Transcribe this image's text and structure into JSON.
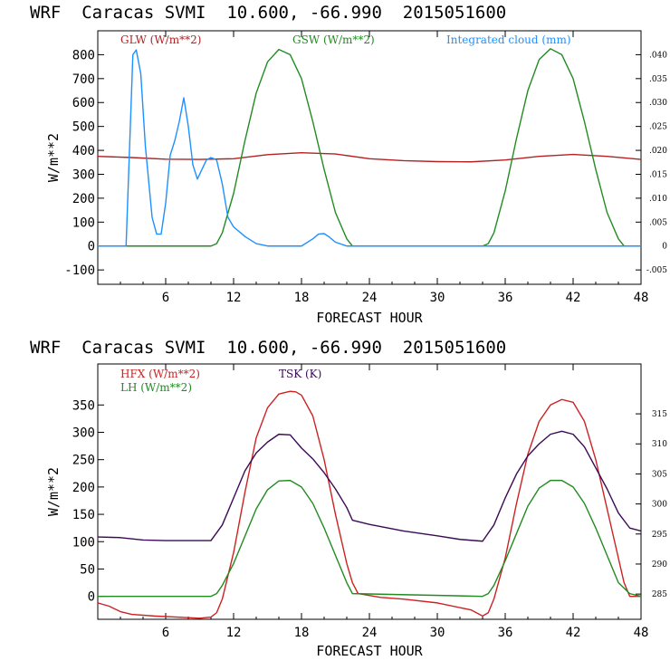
{
  "chart_data": [
    {
      "type": "line",
      "title": "WRF  Caracas SVMI  10.600, -66.990  2015051600",
      "xlabel": "FORECAST HOUR",
      "ylabel": "W/m**2",
      "xlim": [
        0,
        48
      ],
      "ylim": [
        -160,
        900
      ],
      "y2lim": [
        -0.008,
        0.045
      ],
      "x_ticks": [
        6,
        12,
        18,
        24,
        30,
        36,
        42,
        48
      ],
      "x_tick_labels": [
        "6",
        "12",
        "18",
        "24",
        "30",
        "36",
        "42",
        "48"
      ],
      "y_ticks": [
        -100,
        0,
        100,
        200,
        300,
        400,
        500,
        600,
        700,
        800
      ],
      "y_tick_labels": [
        "-100",
        "0",
        "100",
        "200",
        "300",
        "400",
        "500",
        "600",
        "700",
        "800"
      ],
      "y2_ticks": [
        -0.005,
        0,
        0.005,
        0.01,
        0.015,
        0.02,
        0.025,
        0.03,
        0.035,
        0.04
      ],
      "y2_tick_labels": [
        "-.005",
        "0",
        ".005",
        ".010",
        ".015",
        ".020",
        ".025",
        ".030",
        ".035",
        ".040"
      ],
      "grid": false,
      "legend": "top",
      "series": [
        {
          "name": "GLW (W/m**2)",
          "color": "#b22222",
          "axis": "left",
          "x": [
            0,
            3,
            6,
            9,
            12,
            15,
            18,
            21,
            24,
            27,
            30,
            33,
            36,
            39,
            42,
            45,
            48
          ],
          "values": [
            375,
            370,
            363,
            362,
            365,
            382,
            390,
            385,
            365,
            357,
            353,
            352,
            360,
            375,
            383,
            375,
            362
          ]
        },
        {
          "name": "GSW (W/m**2)",
          "color": "#228b22",
          "axis": "left",
          "x": [
            0,
            10,
            10.5,
            11,
            12,
            13,
            14,
            15,
            16,
            17,
            18,
            19,
            20,
            21,
            22,
            22.5,
            34,
            34.5,
            35,
            36,
            37,
            38,
            39,
            40,
            41,
            42,
            43,
            44,
            45,
            46,
            46.5,
            48
          ],
          "values": [
            0,
            0,
            10,
            55,
            220,
            440,
            640,
            770,
            822,
            800,
            700,
            520,
            320,
            140,
            30,
            0,
            0,
            10,
            55,
            230,
            450,
            650,
            780,
            825,
            800,
            700,
            520,
            320,
            140,
            30,
            0,
            0
          ]
        },
        {
          "name": "Integrated cloud (mm)",
          "color": "#1e90ff",
          "axis": "right",
          "x": [
            0,
            2.5,
            2.8,
            3.1,
            3.4,
            3.8,
            4.2,
            4.8,
            5.2,
            5.6,
            6,
            6.4,
            6.8,
            7.2,
            7.6,
            8,
            8.4,
            8.8,
            9.2,
            9.6,
            10,
            10.5,
            11,
            11.5,
            12,
            13,
            14,
            15,
            18,
            19,
            19.5,
            20,
            20.5,
            21,
            22,
            24,
            30,
            36,
            42,
            46,
            48
          ],
          "values": [
            0,
            0,
            0.02,
            0.04,
            0.041,
            0.036,
            0.021,
            0.006,
            0.0025,
            0.0025,
            0.009,
            0.019,
            0.022,
            0.026,
            0.031,
            0.025,
            0.017,
            0.014,
            0.016,
            0.018,
            0.0185,
            0.018,
            0.013,
            0.006,
            0.004,
            0.002,
            0.0005,
            0,
            0,
            0.0015,
            0.0025,
            0.0026,
            0.0018,
            0.0008,
            0,
            0,
            0,
            0,
            0,
            0,
            0
          ]
        }
      ]
    },
    {
      "type": "line",
      "title": "WRF  Caracas SVMI  10.600, -66.990  2015051600",
      "xlabel": "FORECAST HOUR",
      "ylabel": "W/m**2",
      "xlim": [
        0,
        48
      ],
      "ylim": [
        -42,
        425
      ],
      "y2lim": [
        280.8,
        323.3
      ],
      "x_ticks": [
        6,
        12,
        18,
        24,
        30,
        36,
        42,
        48
      ],
      "x_tick_labels": [
        "6",
        "12",
        "18",
        "24",
        "30",
        "36",
        "42",
        "48"
      ],
      "y_ticks": [
        0,
        50,
        100,
        150,
        200,
        250,
        300,
        350
      ],
      "y_tick_labels": [
        "0",
        "50",
        "100",
        "150",
        "200",
        "250",
        "300",
        "350"
      ],
      "y2_ticks": [
        285,
        290,
        295,
        300,
        305,
        310,
        315
      ],
      "y2_tick_labels": [
        "285",
        "290",
        "295",
        "300",
        "305",
        "310",
        "315"
      ],
      "grid": false,
      "legend": "top-left",
      "series": [
        {
          "name": "HFX (W/m**2)",
          "color": "#cc2222",
          "axis": "left",
          "x": [
            0,
            1,
            2,
            3,
            5,
            7,
            9,
            10,
            10.5,
            11,
            12,
            13,
            14,
            15,
            16,
            17,
            17.5,
            18,
            19,
            20,
            21,
            22,
            22.5,
            23,
            25,
            27,
            30,
            33,
            34,
            34.5,
            35,
            36,
            37,
            38,
            39,
            40,
            41,
            42,
            43,
            44,
            45,
            46,
            46.5,
            47,
            48
          ],
          "values": [
            -12,
            -18,
            -28,
            -33,
            -36,
            -38,
            -40,
            -38,
            -30,
            -5,
            80,
            190,
            290,
            345,
            370,
            375,
            374,
            368,
            330,
            250,
            150,
            60,
            25,
            5,
            -2,
            -5,
            -12,
            -25,
            -36,
            -30,
            -5,
            70,
            170,
            260,
            320,
            350,
            360,
            355,
            320,
            250,
            160,
            70,
            25,
            0,
            0
          ]
        },
        {
          "name": "LH (W/m**2)",
          "color": "#228b22",
          "axis": "left",
          "x": [
            0,
            10,
            10.5,
            11,
            12,
            13,
            14,
            15,
            16,
            17,
            18,
            19,
            20,
            21,
            22,
            22.5,
            34,
            34.5,
            35,
            36,
            37,
            38,
            39,
            40,
            41,
            42,
            43,
            44,
            45,
            46,
            47,
            48
          ],
          "values": [
            0,
            0,
            5,
            20,
            60,
            110,
            160,
            195,
            211,
            212,
            200,
            170,
            125,
            75,
            25,
            5,
            0,
            5,
            20,
            65,
            115,
            165,
            198,
            212,
            212,
            200,
            170,
            125,
            75,
            25,
            5,
            0
          ]
        },
        {
          "name": "TSK (K)",
          "color": "#3a0a55",
          "axis": "right",
          "x": [
            0,
            2,
            4,
            6,
            8,
            10,
            11,
            12,
            13,
            14,
            15,
            16,
            17,
            18,
            19,
            20,
            21,
            22,
            22.5,
            24,
            27,
            30,
            32,
            34,
            35,
            36,
            37,
            38,
            39,
            40,
            41,
            42,
            43,
            44,
            45,
            46,
            47,
            48
          ],
          "values": [
            294.5,
            294.4,
            294.0,
            293.9,
            293.9,
            293.9,
            296.5,
            301,
            305.5,
            308.5,
            310.3,
            311.6,
            311.5,
            309.3,
            307.5,
            305.2,
            302.5,
            299.4,
            297.3,
            296.6,
            295.5,
            294.7,
            294.1,
            293.8,
            296.5,
            301,
            305,
            308,
            310,
            311.6,
            312.1,
            311.6,
            309.5,
            306,
            302.5,
            298.5,
            296,
            295.5
          ]
        }
      ]
    }
  ]
}
